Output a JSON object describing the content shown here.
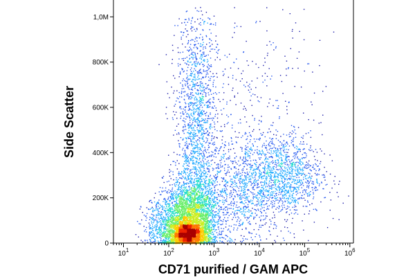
{
  "chart_data": {
    "type": "scatter",
    "title": "",
    "xlabel": "CD71 purified / GAM APC",
    "ylabel": "Side Scatter",
    "x_scale": "log",
    "xlim": [
      6,
      1200000
    ],
    "ylim": [
      0,
      1050000
    ],
    "grid": false,
    "x_ticks": [
      {
        "value": 10,
        "base": "10",
        "exp": "1"
      },
      {
        "value": 100,
        "base": "10",
        "exp": "2"
      },
      {
        "value": 1000,
        "base": "10",
        "exp": "3"
      },
      {
        "value": 10000,
        "base": "10",
        "exp": "4"
      },
      {
        "value": 100000,
        "base": "10",
        "exp": "5"
      },
      {
        "value": 1000000,
        "base": "10",
        "exp": "6"
      }
    ],
    "y_ticks": [
      {
        "value": 0,
        "label": "0"
      },
      {
        "value": 200000,
        "label": "200K"
      },
      {
        "value": 400000,
        "label": "400K"
      },
      {
        "value": 600000,
        "label": "600K"
      },
      {
        "value": 800000,
        "label": "800K"
      },
      {
        "value": 1000000,
        "label": "1,0M"
      }
    ],
    "density_colors": [
      "#1a1aa8",
      "#2255ee",
      "#22aaff",
      "#22ddcc",
      "#66ee66",
      "#ccee22",
      "#ffcc00",
      "#ff7700",
      "#ee2200",
      "#aa0000"
    ],
    "populations": [
      {
        "name_hidden": true,
        "center": [
          250,
          40000
        ],
        "spread": [
          0.22,
          30000
        ],
        "count": 2200
      },
      {
        "name_hidden": true,
        "center": [
          300,
          120000
        ],
        "spread": [
          0.3,
          80000
        ],
        "count": 2600
      },
      {
        "name_hidden": true,
        "center": [
          400,
          500000
        ],
        "spread": [
          0.22,
          280000
        ],
        "count": 1700
      },
      {
        "name_hidden": true,
        "center": [
          30000,
          300000
        ],
        "spread": [
          0.45,
          90000
        ],
        "count": 1300
      },
      {
        "name_hidden": true,
        "center": [
          3000,
          220000
        ],
        "spread": [
          0.5,
          120000
        ],
        "count": 900
      },
      {
        "name_hidden": true,
        "center": [
          80,
          80000
        ],
        "spread": [
          0.25,
          60000
        ],
        "count": 500
      },
      {
        "name_hidden": true,
        "center": [
          5000,
          600000
        ],
        "spread": [
          0.8,
          250000
        ],
        "count": 350
      }
    ]
  }
}
